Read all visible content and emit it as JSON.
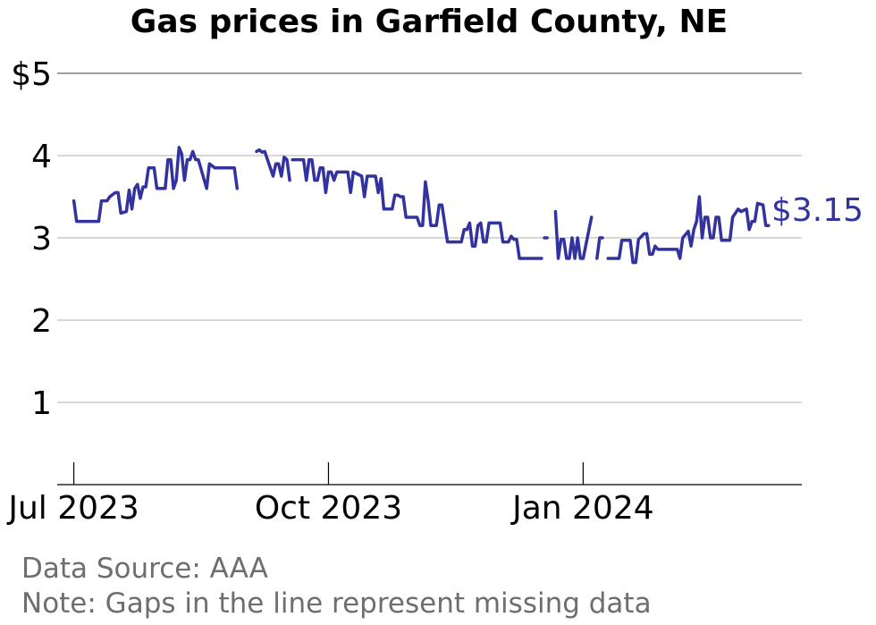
{
  "title": "Gas prices in Garfield County, NE",
  "source_note": "Data Source: AAA",
  "gap_note": "Note: Gaps in the line represent missing data",
  "end_label": "$3.15",
  "colors": {
    "series": "#3333a0",
    "text": "#000000",
    "footnote": "#6e6e6e"
  },
  "chart_data": {
    "type": "line",
    "title": "Gas prices in Garfield County, NE",
    "xlabel": "",
    "ylabel": "",
    "ylim": [
      0,
      5
    ],
    "xlim": [
      "2023-06-25",
      "2024-03-20"
    ],
    "grid": true,
    "y_ticks": [
      {
        "value": 1,
        "label": "1"
      },
      {
        "value": 2,
        "label": "2"
      },
      {
        "value": 3,
        "label": "3"
      },
      {
        "value": 4,
        "label": "4"
      },
      {
        "value": 5,
        "label": "$5"
      }
    ],
    "x_ticks": [
      {
        "value": "2023-07-01",
        "label": "Jul 2023"
      },
      {
        "value": "2023-10-01",
        "label": "Oct 2023"
      },
      {
        "value": "2024-01-01",
        "label": "Jan 2024"
      }
    ],
    "series": [
      {
        "segments": [
          [
            [
              "2023-07-01",
              3.45
            ],
            [
              "2023-07-02",
              3.2
            ],
            [
              "2023-07-10",
              3.2
            ],
            [
              "2023-07-11",
              3.45
            ],
            [
              "2023-07-13",
              3.45
            ],
            [
              "2023-07-14",
              3.5
            ],
            [
              "2023-07-16",
              3.55
            ],
            [
              "2023-07-17",
              3.55
            ],
            [
              "2023-07-18",
              3.3
            ],
            [
              "2023-07-20",
              3.32
            ],
            [
              "2023-07-21",
              3.58
            ],
            [
              "2023-07-22",
              3.35
            ],
            [
              "2023-07-23",
              3.6
            ],
            [
              "2023-07-24",
              3.65
            ],
            [
              "2023-07-25",
              3.48
            ],
            [
              "2023-07-26",
              3.62
            ],
            [
              "2023-07-27",
              3.62
            ],
            [
              "2023-07-28",
              3.85
            ],
            [
              "2023-07-30",
              3.85
            ],
            [
              "2023-07-31",
              3.6
            ],
            [
              "2023-08-03",
              3.6
            ],
            [
              "2023-08-04",
              3.95
            ],
            [
              "2023-08-05",
              3.95
            ],
            [
              "2023-08-06",
              3.6
            ],
            [
              "2023-08-07",
              3.7
            ],
            [
              "2023-08-08",
              4.1
            ],
            [
              "2023-08-09",
              4.02
            ],
            [
              "2023-08-10",
              3.7
            ],
            [
              "2023-08-11",
              3.95
            ],
            [
              "2023-08-12",
              3.95
            ],
            [
              "2023-08-13",
              4.05
            ],
            [
              "2023-08-14",
              3.95
            ],
            [
              "2023-08-15",
              3.95
            ],
            [
              "2023-08-18",
              3.6
            ],
            [
              "2023-08-19",
              3.9
            ],
            [
              "2023-08-21",
              3.85
            ],
            [
              "2023-08-28",
              3.85
            ],
            [
              "2023-08-29",
              3.6
            ]
          ],
          [
            [
              "2023-09-05",
              4.05
            ],
            [
              "2023-09-06",
              4.07
            ],
            [
              "2023-09-07",
              4.04
            ],
            [
              "2023-09-08",
              4.05
            ],
            [
              "2023-09-11",
              3.75
            ],
            [
              "2023-09-12",
              3.9
            ],
            [
              "2023-09-13",
              3.9
            ],
            [
              "2023-09-14",
              3.75
            ],
            [
              "2023-09-15",
              3.98
            ],
            [
              "2023-09-16",
              3.95
            ],
            [
              "2023-09-17",
              3.7
            ]
          ],
          [
            [
              "2023-09-18",
              3.95
            ],
            [
              "2023-09-22",
              3.95
            ],
            [
              "2023-09-23",
              3.7
            ],
            [
              "2023-09-24",
              3.95
            ],
            [
              "2023-09-25",
              3.95
            ],
            [
              "2023-09-26",
              3.7
            ],
            [
              "2023-09-27",
              3.7
            ],
            [
              "2023-09-28",
              3.85
            ],
            [
              "2023-09-29",
              3.85
            ],
            [
              "2023-09-30",
              3.55
            ],
            [
              "2023-10-01",
              3.8
            ],
            [
              "2023-10-02",
              3.8
            ],
            [
              "2023-10-03",
              3.7
            ],
            [
              "2023-10-04",
              3.8
            ],
            [
              "2023-10-08",
              3.8
            ],
            [
              "2023-10-09",
              3.55
            ],
            [
              "2023-10-10",
              3.8
            ],
            [
              "2023-10-13",
              3.75
            ],
            [
              "2023-10-14",
              3.5
            ],
            [
              "2023-10-15",
              3.75
            ],
            [
              "2023-10-18",
              3.75
            ],
            [
              "2023-10-19",
              3.55
            ],
            [
              "2023-10-20",
              3.72
            ],
            [
              "2023-10-21",
              3.35
            ],
            [
              "2023-10-24",
              3.35
            ],
            [
              "2023-10-25",
              3.52
            ],
            [
              "2023-10-26",
              3.52
            ],
            [
              "2023-10-27",
              3.5
            ],
            [
              "2023-10-28",
              3.5
            ],
            [
              "2023-10-29",
              3.25
            ],
            [
              "2023-11-02",
              3.25
            ],
            [
              "2023-11-03",
              3.15
            ],
            [
              "2023-11-04",
              3.15
            ],
            [
              "2023-11-05",
              3.68
            ],
            [
              "2023-11-06",
              3.45
            ],
            [
              "2023-11-07",
              3.15
            ],
            [
              "2023-11-09",
              3.15
            ],
            [
              "2023-11-10",
              3.4
            ],
            [
              "2023-11-11",
              3.4
            ],
            [
              "2023-11-13",
              2.95
            ],
            [
              "2023-11-18",
              2.95
            ],
            [
              "2023-11-19",
              3.1
            ],
            [
              "2023-11-20",
              3.1
            ],
            [
              "2023-11-21",
              3.18
            ],
            [
              "2023-11-22",
              2.9
            ],
            [
              "2023-11-23",
              2.9
            ],
            [
              "2023-11-24",
              3.15
            ],
            [
              "2023-11-25",
              3.18
            ],
            [
              "2023-11-26",
              2.95
            ],
            [
              "2023-11-27",
              2.95
            ],
            [
              "2023-11-28",
              3.18
            ],
            [
              "2023-12-02",
              3.18
            ],
            [
              "2023-12-03",
              2.95
            ],
            [
              "2023-12-05",
              2.95
            ],
            [
              "2023-12-06",
              3.02
            ],
            [
              "2023-12-07",
              2.98
            ],
            [
              "2023-12-08",
              2.98
            ],
            [
              "2023-12-09",
              2.75
            ],
            [
              "2023-12-17",
              2.75
            ]
          ],
          [
            [
              "2023-12-18",
              3.0
            ],
            [
              "2023-12-19",
              3.0
            ]
          ],
          [
            [
              "2023-12-22",
              3.32
            ],
            [
              "2023-12-23",
              2.75
            ],
            [
              "2023-12-24",
              2.98
            ],
            [
              "2023-12-25",
              2.98
            ],
            [
              "2023-12-26",
              2.75
            ],
            [
              "2023-12-27",
              2.75
            ],
            [
              "2023-12-28",
              3.0
            ],
            [
              "2023-12-29",
              2.75
            ],
            [
              "2023-12-30",
              3.0
            ],
            [
              "2023-12-31",
              2.75
            ],
            [
              "2024-01-01",
              2.75
            ],
            [
              "2024-01-04",
              3.25
            ]
          ],
          [
            [
              "2024-01-06",
              2.75
            ],
            [
              "2024-01-07",
              3.0
            ],
            [
              "2024-01-08",
              3.0
            ]
          ],
          [
            [
              "2024-01-10",
              2.75
            ],
            [
              "2024-01-14",
              2.75
            ],
            [
              "2024-01-15",
              2.97
            ],
            [
              "2024-01-18",
              2.97
            ],
            [
              "2024-01-19",
              2.7
            ],
            [
              "2024-01-20",
              2.7
            ],
            [
              "2024-01-21",
              2.98
            ],
            [
              "2024-01-23",
              3.05
            ],
            [
              "2024-01-24",
              3.05
            ],
            [
              "2024-01-25",
              2.8
            ],
            [
              "2024-01-26",
              2.8
            ],
            [
              "2024-01-27",
              2.9
            ],
            [
              "2024-01-28",
              2.86
            ],
            [
              "2024-02-04",
              2.86
            ],
            [
              "2024-02-05",
              2.75
            ],
            [
              "2024-02-06",
              3.0
            ],
            [
              "2024-02-08",
              3.08
            ],
            [
              "2024-02-09",
              2.9
            ],
            [
              "2024-02-10",
              3.1
            ],
            [
              "2024-02-11",
              3.2
            ],
            [
              "2024-02-12",
              3.5
            ],
            [
              "2024-02-13",
              3.0
            ],
            [
              "2024-02-14",
              3.25
            ],
            [
              "2024-02-15",
              3.25
            ],
            [
              "2024-02-16",
              3.0
            ],
            [
              "2024-02-17",
              3.0
            ],
            [
              "2024-02-18",
              3.25
            ],
            [
              "2024-02-19",
              3.25
            ],
            [
              "2024-02-20",
              2.97
            ],
            [
              "2024-02-23",
              2.97
            ],
            [
              "2024-02-24",
              3.25
            ],
            [
              "2024-02-26",
              3.35
            ],
            [
              "2024-02-27",
              3.32
            ],
            [
              "2024-02-29",
              3.35
            ],
            [
              "2024-03-01",
              3.1
            ],
            [
              "2024-03-02",
              3.2
            ],
            [
              "2024-03-03",
              3.2
            ],
            [
              "2024-03-04",
              3.42
            ],
            [
              "2024-03-06",
              3.4
            ],
            [
              "2024-03-07",
              3.15
            ],
            [
              "2024-03-08",
              3.15
            ]
          ]
        ]
      }
    ]
  }
}
